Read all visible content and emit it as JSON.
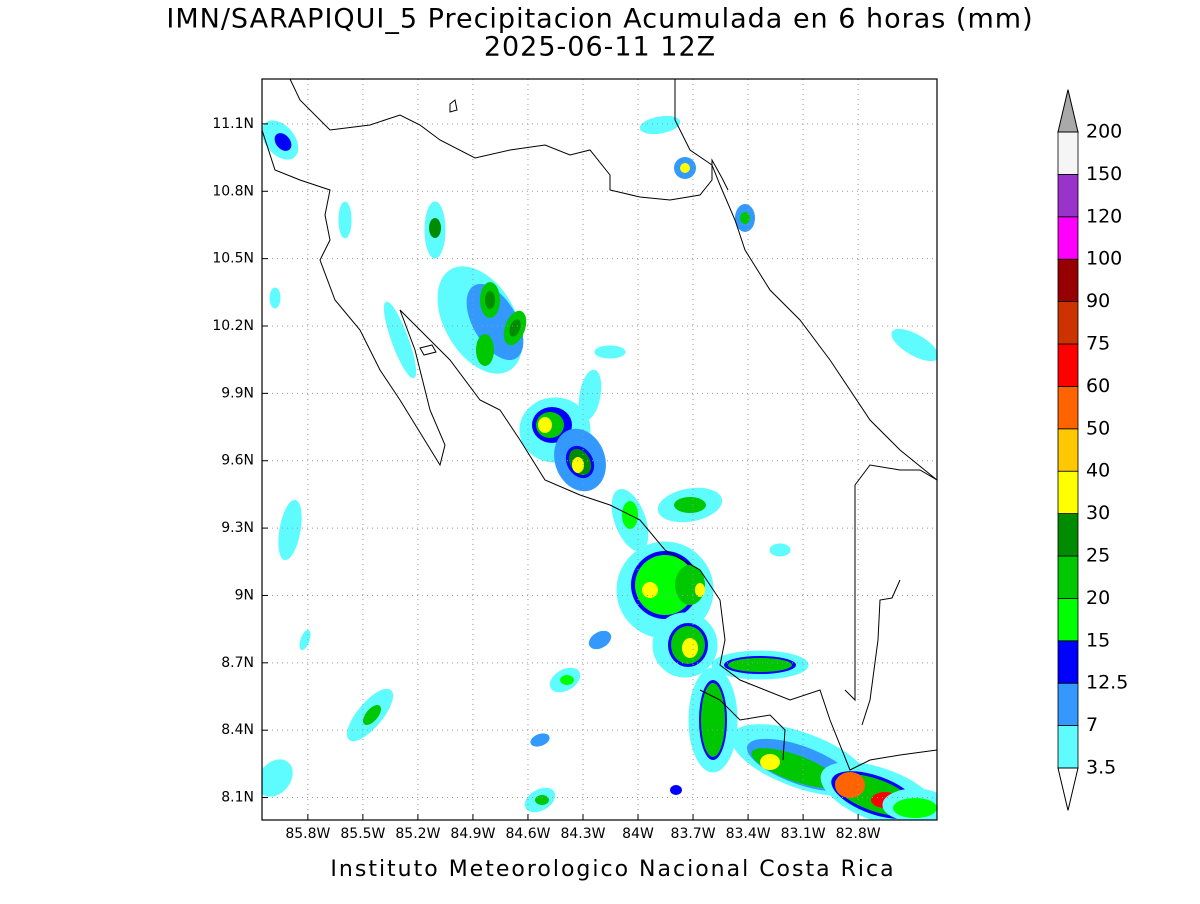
{
  "map": {
    "title": "IMN/SARAPIQUI_5 Precipitacion Acumulada en 6 horas (mm)",
    "subtitle": "2025-06-11 12Z",
    "footer": "Instituto Meteorologico Nacional Costa Rica",
    "lon_range": [
      -86.05,
      -82.37
    ],
    "lat_range": [
      8.0,
      11.3
    ],
    "lon_ticks": [
      {
        "value": -85.8,
        "label": "85.8W"
      },
      {
        "value": -85.5,
        "label": "85.5W"
      },
      {
        "value": -85.2,
        "label": "85.2W"
      },
      {
        "value": -84.9,
        "label": "84.9W"
      },
      {
        "value": -84.6,
        "label": "84.6W"
      },
      {
        "value": -84.3,
        "label": "84.3W"
      },
      {
        "value": -84.0,
        "label": "84W"
      },
      {
        "value": -83.7,
        "label": "83.7W"
      },
      {
        "value": -83.4,
        "label": "83.4W"
      },
      {
        "value": -83.1,
        "label": "83.1W"
      },
      {
        "value": -82.8,
        "label": "82.8W"
      }
    ],
    "lat_ticks": [
      {
        "value": 8.1,
        "label": "8.1N"
      },
      {
        "value": 8.4,
        "label": "8.4N"
      },
      {
        "value": 8.7,
        "label": "8.7N"
      },
      {
        "value": 9.0,
        "label": "9N"
      },
      {
        "value": 9.3,
        "label": "9.3N"
      },
      {
        "value": 9.6,
        "label": "9.6N"
      },
      {
        "value": 9.9,
        "label": "9.9N"
      },
      {
        "value": 10.2,
        "label": "10.2N"
      },
      {
        "value": 10.5,
        "label": "10.5N"
      },
      {
        "value": 10.8,
        "label": "10.8N"
      },
      {
        "value": 11.1,
        "label": "11.1N"
      }
    ],
    "colorbar": {
      "levels": [
        3.5,
        7,
        12.5,
        15,
        20,
        25,
        30,
        40,
        50,
        60,
        75,
        90,
        100,
        120,
        150,
        200
      ],
      "colors": [
        "#5ffcff",
        "#3399ff",
        "#0000ff",
        "#00ff00",
        "#00c800",
        "#008c00",
        "#ffff00",
        "#ffc800",
        "#ff6400",
        "#ff0000",
        "#cc3300",
        "#960000",
        "#ff00ff",
        "#9933cc",
        "#f5f5f5"
      ],
      "under_color": "#ffffff",
      "over_color": "#a9a9a9"
    }
  }
}
